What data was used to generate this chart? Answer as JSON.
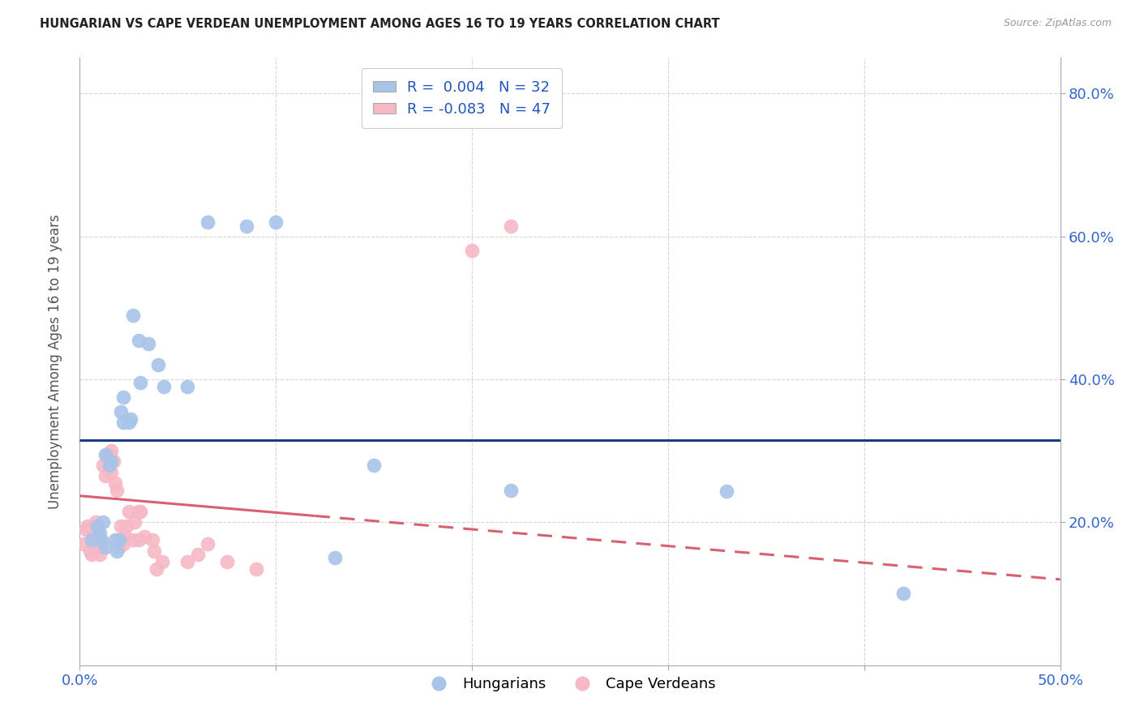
{
  "title": "HUNGARIAN VS CAPE VERDEAN UNEMPLOYMENT AMONG AGES 16 TO 19 YEARS CORRELATION CHART",
  "source": "Source: ZipAtlas.com",
  "ylabel": "Unemployment Among Ages 16 to 19 years",
  "xlim": [
    0.0,
    0.5
  ],
  "ylim": [
    0.0,
    0.85
  ],
  "yticks": [
    0.2,
    0.4,
    0.6,
    0.8
  ],
  "ytick_labels": [
    "20.0%",
    "40.0%",
    "60.0%",
    "80.0%"
  ],
  "xticks": [
    0.0,
    0.1,
    0.2,
    0.3,
    0.4,
    0.5
  ],
  "xtick_labels": [
    "0.0%",
    "",
    "",
    "",
    "",
    "50.0%"
  ],
  "blue_R": 0.004,
  "blue_N": 32,
  "pink_R": -0.083,
  "pink_N": 47,
  "blue_color": "#a8c4e8",
  "pink_color": "#f5b8c4",
  "trend_blue_color": "#1a3a8c",
  "trend_pink_color": "#d9606e",
  "blue_points_x": [
    0.006,
    0.009,
    0.01,
    0.011,
    0.012,
    0.013,
    0.013,
    0.015,
    0.016,
    0.018,
    0.019,
    0.02,
    0.021,
    0.022,
    0.022,
    0.025,
    0.026,
    0.027,
    0.03,
    0.031,
    0.035,
    0.04,
    0.043,
    0.055,
    0.065,
    0.085,
    0.1,
    0.13,
    0.15,
    0.22,
    0.33,
    0.42
  ],
  "blue_points_y": [
    0.175,
    0.195,
    0.185,
    0.175,
    0.2,
    0.165,
    0.295,
    0.28,
    0.285,
    0.175,
    0.16,
    0.175,
    0.355,
    0.34,
    0.375,
    0.34,
    0.345,
    0.49,
    0.455,
    0.395,
    0.45,
    0.42,
    0.39,
    0.39,
    0.62,
    0.615,
    0.62,
    0.15,
    0.28,
    0.245,
    0.243,
    0.1
  ],
  "pink_points_x": [
    0.002,
    0.003,
    0.004,
    0.005,
    0.006,
    0.006,
    0.007,
    0.007,
    0.008,
    0.008,
    0.009,
    0.009,
    0.01,
    0.01,
    0.011,
    0.012,
    0.013,
    0.014,
    0.015,
    0.016,
    0.016,
    0.017,
    0.018,
    0.019,
    0.02,
    0.021,
    0.022,
    0.023,
    0.024,
    0.025,
    0.027,
    0.028,
    0.03,
    0.03,
    0.031,
    0.033,
    0.037,
    0.038,
    0.039,
    0.042,
    0.055,
    0.06,
    0.065,
    0.075,
    0.09,
    0.2,
    0.22
  ],
  "pink_points_y": [
    0.17,
    0.19,
    0.195,
    0.16,
    0.16,
    0.155,
    0.185,
    0.175,
    0.175,
    0.2,
    0.17,
    0.185,
    0.155,
    0.175,
    0.165,
    0.28,
    0.265,
    0.295,
    0.295,
    0.3,
    0.27,
    0.285,
    0.255,
    0.245,
    0.165,
    0.195,
    0.17,
    0.18,
    0.195,
    0.215,
    0.175,
    0.2,
    0.215,
    0.175,
    0.215,
    0.18,
    0.175,
    0.16,
    0.135,
    0.145,
    0.145,
    0.155,
    0.17,
    0.145,
    0.135,
    0.58,
    0.615
  ]
}
